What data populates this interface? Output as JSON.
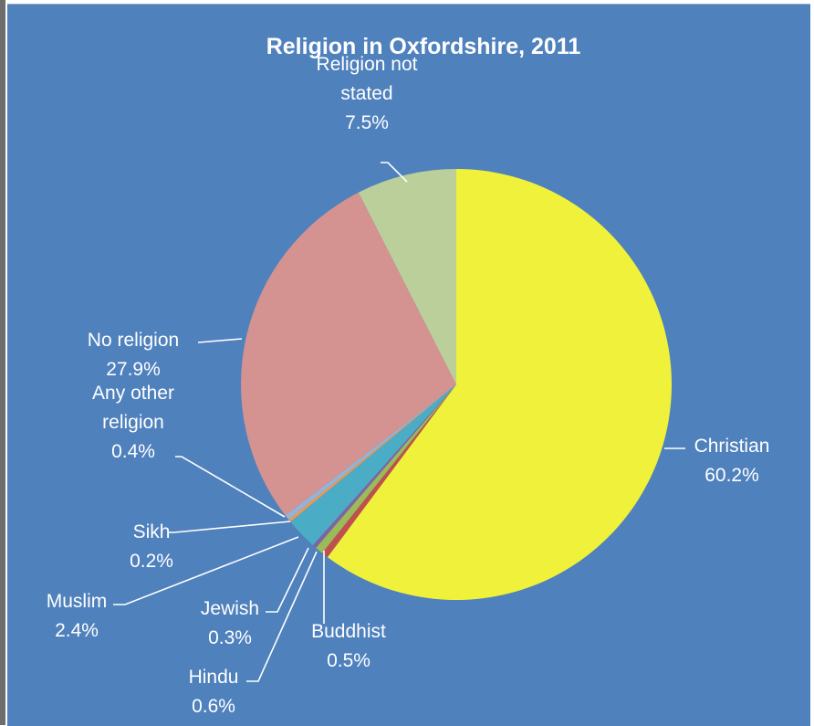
{
  "chart_data": {
    "type": "pie",
    "title": "Religion in Oxfordshire, 2011",
    "start_angle_deg": 0,
    "direction": "clockwise",
    "slices": [
      {
        "label_lines": [
          "Christian"
        ],
        "value": 60.2,
        "value_text": "60.2%",
        "color": "#eff13b"
      },
      {
        "label_lines": [
          "Buddhist"
        ],
        "value": 0.5,
        "value_text": "0.5%",
        "color": "#c0504d"
      },
      {
        "label_lines": [
          "Hindu"
        ],
        "value": 0.6,
        "value_text": "0.6%",
        "color": "#9bbb59"
      },
      {
        "label_lines": [
          "Jewish"
        ],
        "value": 0.3,
        "value_text": "0.3%",
        "color": "#8064a2"
      },
      {
        "label_lines": [
          "Muslim"
        ],
        "value": 2.4,
        "value_text": "2.4%",
        "color": "#4bacc6"
      },
      {
        "label_lines": [
          "Sikh"
        ],
        "value": 0.2,
        "value_text": "0.2%",
        "color": "#f79646"
      },
      {
        "label_lines": [
          "Any other",
          "religion"
        ],
        "value": 0.4,
        "value_text": "0.4%",
        "color": "#95b3d7"
      },
      {
        "label_lines": [
          "No religion"
        ],
        "value": 27.9,
        "value_text": "27.9%",
        "color": "#d49290"
      },
      {
        "label_lines": [
          "Religion not",
          "stated"
        ],
        "value": 7.5,
        "value_text": "7.5%",
        "color": "#bbcf9a"
      }
    ]
  }
}
